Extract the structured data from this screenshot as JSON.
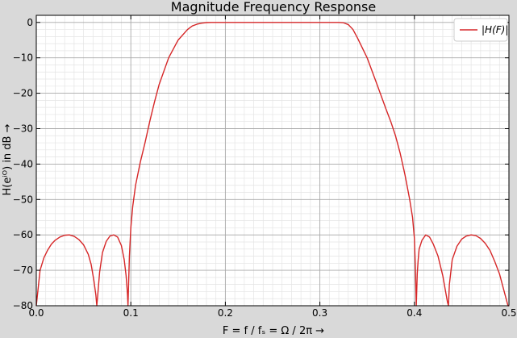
{
  "chart_data": {
    "type": "line",
    "title": "Magnitude Frequency Response",
    "xlabel": "F = f / fₛ = Ω / 2π →",
    "ylabel": "H(eⁱᴼ) in dB →",
    "xlim": [
      0.0,
      0.5
    ],
    "ylim": [
      -80,
      2
    ],
    "x_ticks": [
      0.0,
      0.1,
      0.2,
      0.3,
      0.4,
      0.5
    ],
    "x_tick_labels": [
      "0.0",
      "0.1",
      "0.2",
      "0.3",
      "0.4",
      "0.5"
    ],
    "y_ticks": [
      0,
      -10,
      -20,
      -30,
      -40,
      -50,
      -60,
      -70,
      -80
    ],
    "y_tick_labels": [
      "0",
      "−10",
      "−20",
      "−30",
      "−40",
      "−50",
      "−60",
      "−70",
      "−80"
    ],
    "grid": true,
    "minor_grid": true,
    "legend_position": "top-right",
    "series": [
      {
        "name": "|H(F)|",
        "color": "#d62728",
        "x": [
          0.0,
          0.002,
          0.004,
          0.008,
          0.012,
          0.016,
          0.02,
          0.025,
          0.03,
          0.035,
          0.04,
          0.045,
          0.05,
          0.055,
          0.058,
          0.061,
          0.063,
          0.064,
          0.065,
          0.067,
          0.07,
          0.074,
          0.078,
          0.082,
          0.086,
          0.09,
          0.093,
          0.095,
          0.096,
          0.0965,
          0.097,
          0.0985,
          0.1,
          0.102,
          0.105,
          0.11,
          0.115,
          0.12,
          0.125,
          0.13,
          0.14,
          0.15,
          0.16,
          0.165,
          0.17,
          0.175,
          0.18,
          0.185,
          0.19,
          0.2,
          0.22,
          0.25,
          0.28,
          0.31,
          0.315,
          0.32,
          0.325,
          0.33,
          0.335,
          0.34,
          0.35,
          0.36,
          0.37,
          0.375,
          0.38,
          0.385,
          0.39,
          0.395,
          0.398,
          0.4,
          0.401,
          0.402,
          0.403,
          0.404,
          0.405,
          0.408,
          0.412,
          0.416,
          0.42,
          0.425,
          0.43,
          0.433,
          0.435,
          0.436,
          0.437,
          0.44,
          0.445,
          0.45,
          0.455,
          0.46,
          0.465,
          0.47,
          0.475,
          0.48,
          0.485,
          0.49,
          0.495,
          0.497,
          0.499,
          0.5
        ],
        "y": [
          -80,
          -75,
          -70,
          -66.5,
          -64.3,
          -62.6,
          -61.5,
          -60.6,
          -60.1,
          -60,
          -60.4,
          -61.3,
          -62.8,
          -65.5,
          -68.3,
          -73,
          -77,
          -80,
          -77,
          -70.5,
          -65,
          -61.8,
          -60.3,
          -60,
          -60.6,
          -63,
          -67,
          -71.5,
          -75,
          -77,
          -80,
          -66,
          -58,
          -52,
          -46,
          -39.5,
          -34,
          -28,
          -22.5,
          -17.5,
          -10,
          -5,
          -2,
          -1,
          -0.5,
          -0.2,
          -0.05,
          0,
          0,
          0,
          0,
          0,
          0,
          0,
          0,
          0,
          -0.1,
          -0.6,
          -2,
          -4.5,
          -10,
          -17.2,
          -24.5,
          -28,
          -32,
          -37,
          -43,
          -50,
          -55,
          -61,
          -69,
          -80,
          -71,
          -67,
          -64,
          -61.5,
          -60,
          -60.6,
          -62.6,
          -66,
          -71.5,
          -76,
          -79,
          -80,
          -74,
          -67,
          -63.2,
          -61.2,
          -60.3,
          -60,
          -60.2,
          -61,
          -62.4,
          -64.4,
          -67.5,
          -71,
          -76,
          -78,
          -80,
          -80
        ]
      }
    ]
  }
}
